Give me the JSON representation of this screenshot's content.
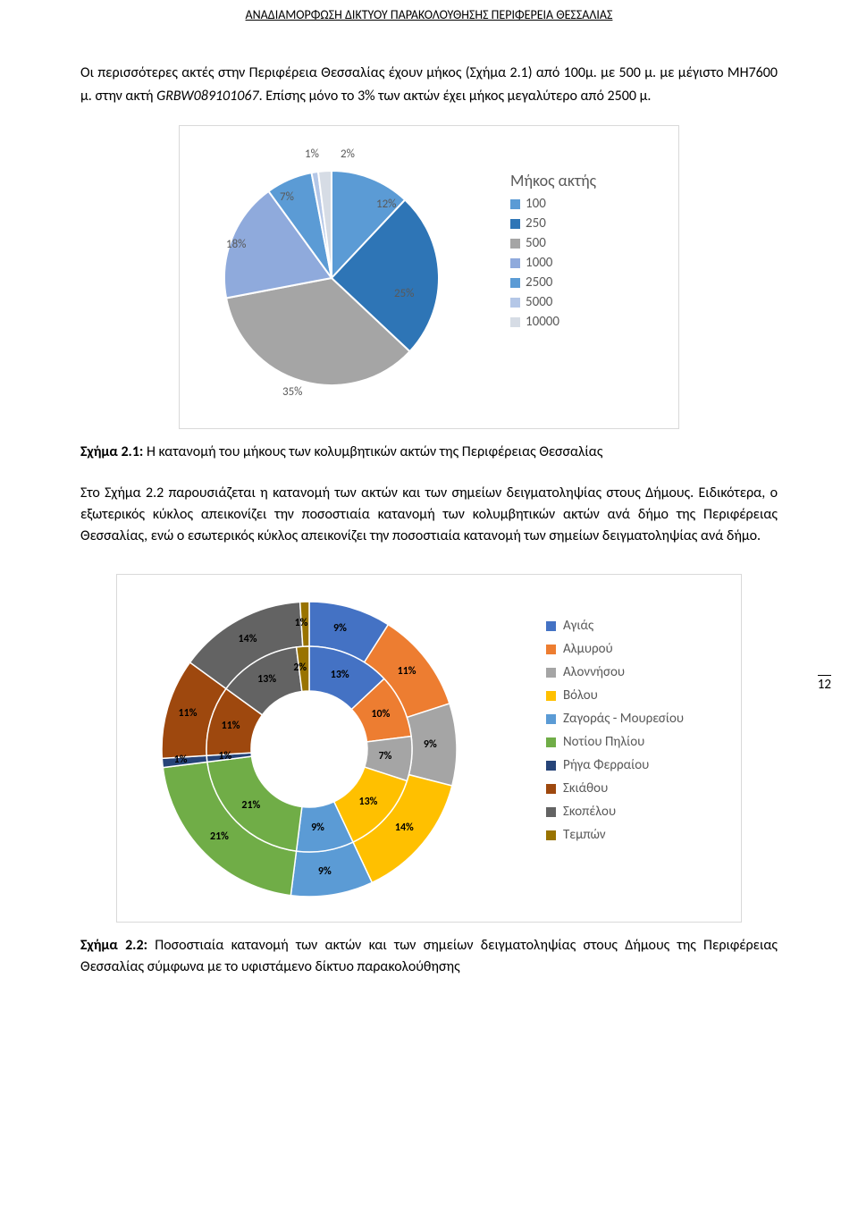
{
  "header": "ΑΝΑΔΙΑΜΟΡΦΩΣΗ ΔΙΚΤΥΟΥ ΠΑΡΑΚΟΛΟΥΘΗΣΗΣ ΠΕΡΙΦΕΡΕΙΑ ΘΕΣΣΑΛΙΑΣ",
  "page_number": "12",
  "paragraph1_a": "Οι περισσότερες ακτές στην Περιφέρεια Θεσσαλίας έχουν μήκος (Σχήμα 2.1) από 100μ. με 500 μ. με μέγιστο ΜΉ7600 μ. στην ακτή ",
  "paragraph1_code": "GRBW089101067",
  "paragraph1_b": ". Επίσης μόνο το 3% των ακτών έχει μήκος μεγαλύτερο από 2500 μ.",
  "caption1_label": "Σχήμα 2.1:",
  "caption1_text": " Η κατανομή του μήκους των κολυμβητικών ακτών της Περιφέρειας Θεσσαλίας",
  "paragraph2": "Στο Σχήμα 2.2 παρουσιάζεται η κατανομή των ακτών και των σημείων δειγματοληψίας στους Δήμους. Ειδικότερα, ο εξωτερικός κύκλος απεικονίζει την ποσοστιαία κατανομή των κολυμβητικών ακτών ανά δήμο της Περιφέρειας Θεσσαλίας, ενώ ο εσωτερικός κύκλος απεικονίζει την ποσοστιαία κατανομή των σημείων δειγματοληψίας ανά δήμο.",
  "caption2_label": "Σχήμα 2.2:",
  "caption2_text": " Ποσοστιαία κατανομή των ακτών και των σημείων δειγματοληψίας στους Δήμους της Περιφέρειας Θεσσαλίας σύμφωνα με το υφιστάμενο δίκτυο παρακολούθησης",
  "chart1": {
    "type": "pie-3d",
    "title": "Μήκος ακτής",
    "slices": [
      {
        "label": "100",
        "value": 12,
        "color": "#5b9bd5"
      },
      {
        "label": "250",
        "value": 25,
        "color": "#2e75b6"
      },
      {
        "label": "500",
        "value": 35,
        "color": "#a5a5a5"
      },
      {
        "label": "1000",
        "value": 18,
        "color": "#8faadc"
      },
      {
        "label": "2500",
        "value": 7,
        "color": "#5b9bd5"
      },
      {
        "label": "5000",
        "value": 1,
        "color": "#b4c7e7"
      },
      {
        "label": "10000",
        "value": 2,
        "color": "#d6dce5"
      }
    ],
    "label_color": "#595959",
    "label_fontsize": 13,
    "slice_texts": [
      "12%",
      "25%",
      "35%",
      "18%",
      "7%",
      "1%",
      "2%"
    ]
  },
  "chart2": {
    "type": "donut-double",
    "series": [
      {
        "name": "Αγιάς",
        "color": "#4472c4",
        "inner": 13,
        "outer": 9
      },
      {
        "name": "Αλμυρού",
        "color": "#ed7d31",
        "inner": 10,
        "outer": 11
      },
      {
        "name": "Αλοννήσου",
        "color": "#a5a5a5",
        "inner": 7,
        "outer": 9
      },
      {
        "name": "Βόλου",
        "color": "#ffc000",
        "inner": 13,
        "outer": 14
      },
      {
        "name": "Ζαγοράς - Μουρεσίου",
        "color": "#5b9bd5",
        "inner": 9,
        "outer": 9
      },
      {
        "name": "Νοτίου Πηλίου",
        "color": "#70ad47",
        "inner": 21,
        "outer": 21
      },
      {
        "name": "Ρήγα Φερραίου",
        "color": "#264478",
        "inner": 1,
        "outer": 1
      },
      {
        "name": "Σκιάθου",
        "color": "#9e480e",
        "inner": 11,
        "outer": 11
      },
      {
        "name": "Σκοπέλου",
        "color": "#636363",
        "inner": 13,
        "outer": 14
      },
      {
        "name": "Τεμπών",
        "color": "#997300",
        "inner": 2,
        "outer": 1
      }
    ],
    "inner_labels": [
      "13%",
      "10%",
      "7%",
      "13%",
      "9%",
      "21%",
      "1%",
      "11%",
      "13%",
      "2%"
    ],
    "outer_labels": [
      "9%",
      "11%",
      "9%",
      "14%",
      "9%",
      "21%",
      "1%",
      "11%",
      "14%",
      "1%"
    ],
    "label_fontsize": 12,
    "label_weight": "bold"
  }
}
